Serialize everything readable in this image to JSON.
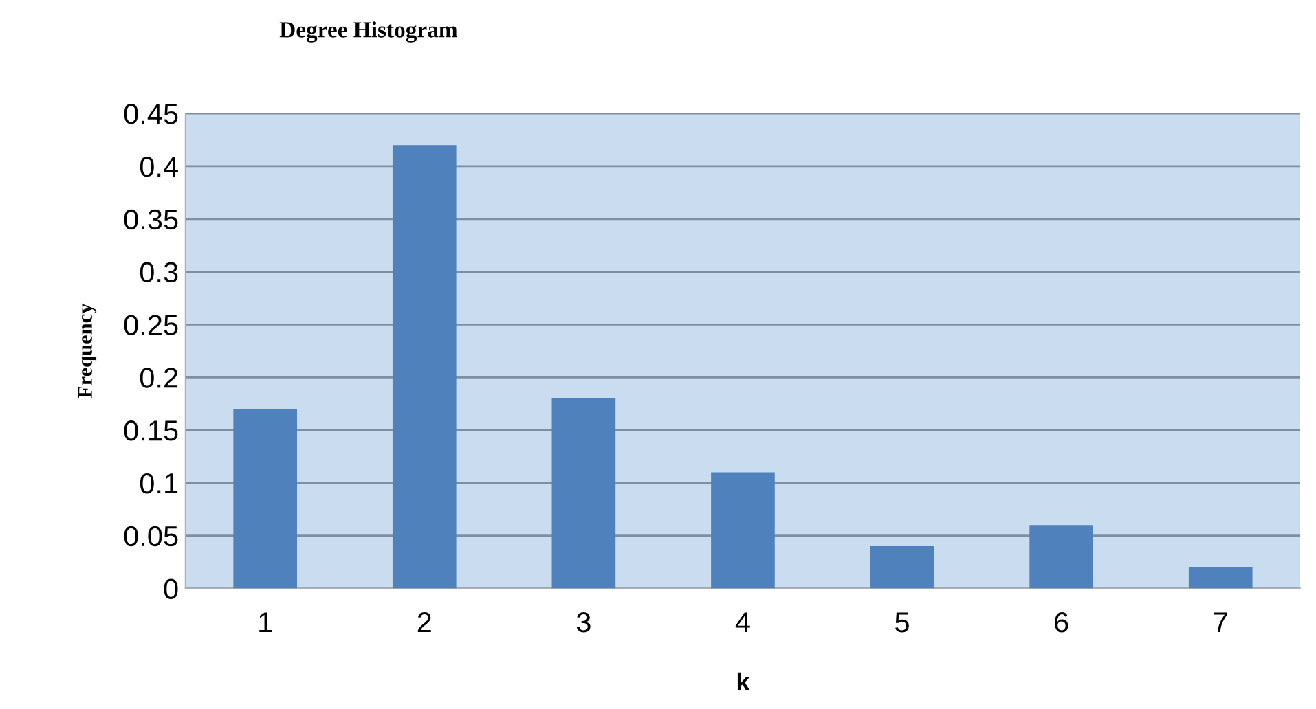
{
  "chart_data": {
    "type": "bar",
    "title": "Degree Histogram",
    "xlabel": "k",
    "ylabel": "Frequency",
    "categories": [
      "1",
      "2",
      "3",
      "4",
      "5",
      "6",
      "7"
    ],
    "values": [
      0.17,
      0.42,
      0.18,
      0.11,
      0.04,
      0.06,
      0.02
    ],
    "color": "#4f81bd",
    "ylim": [
      0,
      0.45
    ],
    "yticks": [
      0,
      0.05,
      0.1,
      0.15,
      0.2,
      0.25,
      0.3,
      0.35,
      0.4,
      0.45
    ],
    "grid": "y",
    "legend": false
  }
}
